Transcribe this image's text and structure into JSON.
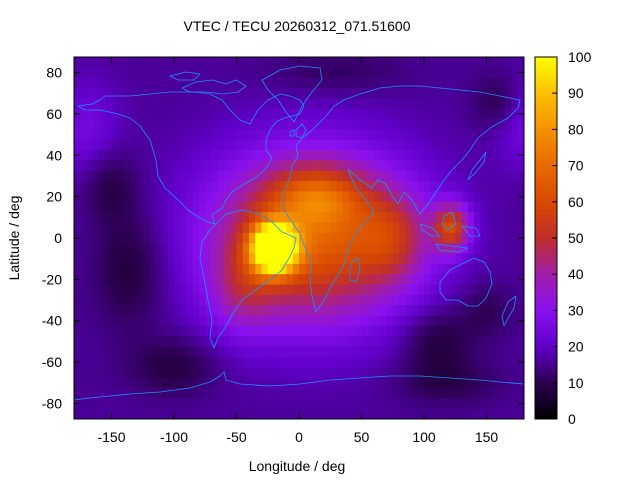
{
  "chart_data": {
    "type": "heatmap",
    "title": "VTEC / TECU 20260312_071.51600",
    "xlabel": "Longitude / deg",
    "ylabel": "Latitude / deg",
    "xlim": [
      -180,
      180
    ],
    "ylim": [
      -87.5,
      87.5
    ],
    "x_ticks": [
      -150,
      -100,
      -50,
      0,
      50,
      100,
      150
    ],
    "y_ticks": [
      -80,
      -60,
      -40,
      -20,
      0,
      20,
      40,
      60,
      80
    ],
    "colorbar": {
      "min": 0,
      "max": 100,
      "ticks": [
        0,
        10,
        20,
        30,
        40,
        50,
        60,
        70,
        80,
        90,
        100
      ]
    },
    "grid": false,
    "grid_resolution_deg": {
      "lon": 5,
      "lat": 5
    },
    "background_level_tecu": 16,
    "features": [
      {
        "name": "south-atlantic-peak",
        "lon": -20,
        "lat": -5,
        "peak_tecu": 98,
        "sigma_lon": 12,
        "sigma_lat": 8
      },
      {
        "name": "main-anomaly-crest",
        "lon": 10,
        "lat": 0,
        "peak_tecu": 50,
        "sigma_lon": 55,
        "sigma_lat": 28
      },
      {
        "name": "north-africa-crest",
        "lon": 15,
        "lat": 20,
        "peak_tecu": 22,
        "sigma_lon": 25,
        "sigma_lat": 10
      },
      {
        "name": "south-america-lobe",
        "lon": -45,
        "lat": -25,
        "peak_tecu": 14,
        "sigma_lon": 18,
        "sigma_lat": 15
      },
      {
        "name": "indian-ocean-extension",
        "lon": 75,
        "lat": 0,
        "peak_tecu": 18,
        "sigma_lon": 20,
        "sigma_lat": 15
      },
      {
        "name": "indonesia-secondary-peak",
        "lon": 122,
        "lat": 5,
        "peak_tecu": 38,
        "sigma_lon": 10,
        "sigma_lat": 8
      },
      {
        "name": "north-pacific-enhancement",
        "lon": -175,
        "lat": 55,
        "peak_tecu": 10,
        "sigma_lon": 20,
        "sigma_lat": 15
      },
      {
        "name": "pacific-depletion",
        "lon": -135,
        "lat": -15,
        "peak_tecu": -9,
        "sigma_lon": 20,
        "sigma_lat": 20
      },
      {
        "name": "north-pacific-depletion",
        "lon": -150,
        "lat": 25,
        "peak_tecu": -7,
        "sigma_lon": 15,
        "sigma_lat": 12
      },
      {
        "name": "southern-ocean-depletion",
        "lon": -100,
        "lat": -62,
        "peak_tecu": -8,
        "sigma_lon": 25,
        "sigma_lat": 10
      },
      {
        "name": "south-indian-depletion",
        "lon": 110,
        "lat": -50,
        "peak_tecu": -9,
        "sigma_lon": 20,
        "sigma_lat": 12
      },
      {
        "name": "australia-south-depletion",
        "lon": 150,
        "lat": -35,
        "peak_tecu": -6,
        "sigma_lon": 15,
        "sigma_lat": 10
      },
      {
        "name": "east-siberia-depletion",
        "lon": 160,
        "lat": 65,
        "peak_tecu": -8,
        "sigma_lon": 15,
        "sigma_lat": 10
      },
      {
        "name": "antarctic-depletion",
        "lon": 120,
        "lat": -70,
        "peak_tecu": -6,
        "sigma_lon": 30,
        "sigma_lat": 8
      },
      {
        "name": "arctic-depletion",
        "lon": 30,
        "lat": 80,
        "peak_tecu": -5,
        "sigma_lon": 40,
        "sigma_lat": 8
      }
    ],
    "overlay": "coastlines"
  }
}
